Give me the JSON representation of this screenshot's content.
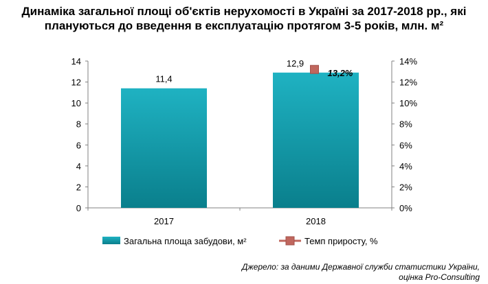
{
  "chart_data": {
    "type": "bar",
    "title_lines": [
      "Динаміка загальної площі об'єктів нерухомості в Україні за 2017-2018 рр., які",
      "плануються до введення в експлуатацію протягом 3-5 років, млн. м²"
    ],
    "categories": [
      "2017",
      "2018"
    ],
    "series": [
      {
        "name": "Загальна площа забудови, м²",
        "type": "bar",
        "axis": "left",
        "values": [
          11.4,
          12.9
        ],
        "labels": [
          "11,4",
          "12,9"
        ],
        "color": "#1aa3b2"
      },
      {
        "name": "Темп приросту, %",
        "type": "line",
        "axis": "right",
        "values": [
          null,
          13.2
        ],
        "labels": [
          null,
          "13,2%"
        ],
        "color": "#c0675e"
      }
    ],
    "y_left": {
      "min": 0,
      "max": 14,
      "step": 2,
      "ticks": [
        "0",
        "2",
        "4",
        "6",
        "8",
        "10",
        "12",
        "14"
      ]
    },
    "y_right": {
      "min": 0,
      "max": 14,
      "step": 2,
      "ticks": [
        "0%",
        "2%",
        "4%",
        "6%",
        "8%",
        "10%",
        "12%",
        "14%"
      ]
    },
    "grid": false,
    "legend_position": "bottom"
  },
  "source": {
    "line1": "Джерело: за даними Державної служби статистики України,",
    "line2": "оцінка Pro-Consulting"
  }
}
